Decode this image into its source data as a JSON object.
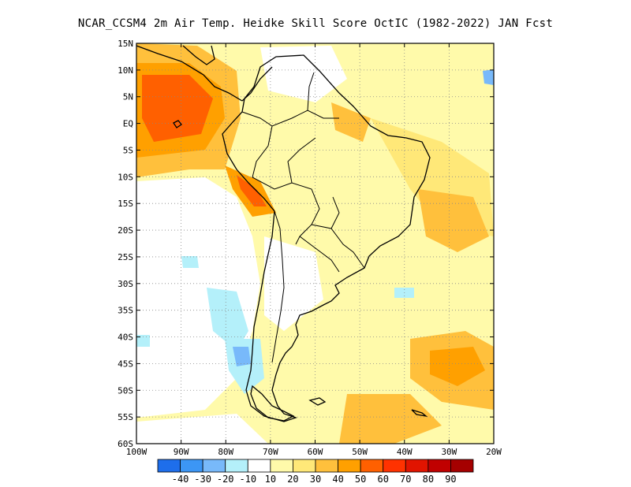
{
  "title": "NCAR_CCSM4  2m Air Temp. Heidke Skill Score OctIC (1982-2022) JAN Fcst",
  "map": {
    "lon_range": [
      -100,
      -20
    ],
    "lat_range": [
      -60,
      15
    ],
    "lat_labels": [
      "15N",
      "10N",
      "5N",
      "EQ",
      "5S",
      "10S",
      "15S",
      "20S",
      "25S",
      "30S",
      "35S",
      "40S",
      "45S",
      "50S",
      "55S",
      "60S"
    ],
    "lat_values": [
      15,
      10,
      5,
      0,
      -5,
      -10,
      -15,
      -20,
      -25,
      -30,
      -35,
      -40,
      -45,
      -50,
      -55,
      -60
    ],
    "lon_labels": [
      "100W",
      "90W",
      "80W",
      "70W",
      "60W",
      "50W",
      "40W",
      "30W",
      "20W"
    ],
    "lon_values": [
      -100,
      -90,
      -80,
      -70,
      -60,
      -50,
      -40,
      -30,
      -20
    ],
    "grid": true
  },
  "colorbar": {
    "colors": [
      "#1e6eeb",
      "#3c96f5",
      "#78b9fa",
      "#b4f0fa",
      "#ffffff",
      "#fffaaa",
      "#ffe878",
      "#ffc03c",
      "#ffa000",
      "#ff6000",
      "#ff3200",
      "#e11400",
      "#c00000",
      "#a50000"
    ],
    "labels": [
      "-40",
      "-30",
      "-20",
      "-10",
      "10",
      "20",
      "30",
      "40",
      "50",
      "60",
      "70",
      "80",
      "90"
    ]
  }
}
